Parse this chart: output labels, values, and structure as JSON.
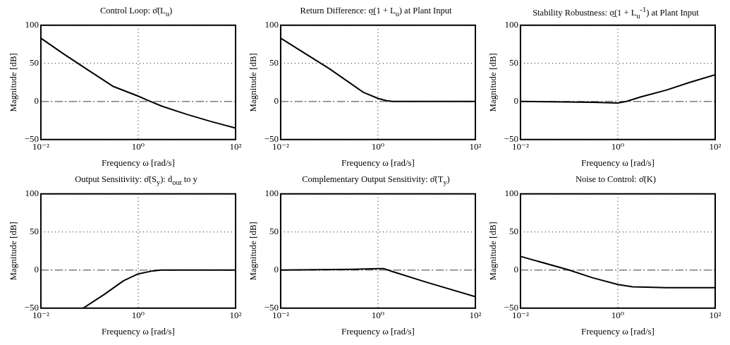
{
  "chart_data": [
    {
      "type": "line",
      "title": "Control Loop: σ̄(L$_{u}$)",
      "xlabel": "Frequency ω [rad/s]",
      "ylabel": "Magnitude [dB]",
      "log": "x",
      "grid": true,
      "xlim": [
        0.01,
        100
      ],
      "ylim": [
        -50,
        100
      ],
      "xticks": [
        {
          "value": 0.01,
          "label": "10⁻²"
        },
        {
          "value": 1,
          "label": "10⁰"
        },
        {
          "value": 100,
          "label": "10²"
        }
      ],
      "yticks": [
        -50,
        0,
        50,
        100
      ],
      "ref_lines": [
        {
          "axis": "y",
          "value": 0,
          "color": "#808080"
        }
      ],
      "x": [
        0.01,
        0.03,
        0.1,
        0.3,
        1,
        1.5,
        3,
        10,
        30,
        100
      ],
      "series": [
        {
          "color": "#000000",
          "values": [
            83,
            62,
            40,
            20,
            7,
            2,
            -6,
            -17,
            -26,
            -35
          ]
        }
      ]
    },
    {
      "type": "line",
      "title": "Return Difference: σ̲(1 + L$_{u}$) at Plant Input",
      "xlabel": "Frequency ω [rad/s]",
      "ylabel": "Magnitude [dB]",
      "log": "x",
      "grid": true,
      "xlim": [
        0.01,
        100
      ],
      "ylim": [
        -50,
        100
      ],
      "xticks": [
        {
          "value": 0.01,
          "label": "10⁻²"
        },
        {
          "value": 1,
          "label": "10⁰"
        },
        {
          "value": 100,
          "label": "10²"
        }
      ],
      "yticks": [
        -50,
        0,
        50,
        100
      ],
      "ref_lines": [
        {
          "axis": "y",
          "value": 0,
          "color": "#808080"
        }
      ],
      "x": [
        0.01,
        0.1,
        0.5,
        1,
        1.5,
        2,
        10,
        100
      ],
      "series": [
        {
          "color": "#000000",
          "values": [
            83,
            43,
            12,
            4,
            1,
            0,
            0,
            0
          ]
        }
      ]
    },
    {
      "type": "line",
      "title": "Stability Robustness: σ̲(1 + L$_{u}$$^{-1}$) at Plant Input",
      "xlabel": "Frequency ω [rad/s]",
      "ylabel": "Magnitude [dB]",
      "log": "x",
      "grid": true,
      "xlim": [
        0.01,
        100
      ],
      "ylim": [
        -50,
        100
      ],
      "xticks": [
        {
          "value": 0.01,
          "label": "10⁻²"
        },
        {
          "value": 1,
          "label": "10⁰"
        },
        {
          "value": 100,
          "label": "10²"
        }
      ],
      "yticks": [
        -50,
        0,
        50,
        100
      ],
      "ref_lines": [
        {
          "axis": "y",
          "value": 0,
          "color": "#808080"
        }
      ],
      "x": [
        0.01,
        0.3,
        1,
        1.5,
        3,
        10,
        30,
        100
      ],
      "series": [
        {
          "color": "#000000",
          "values": [
            0,
            -1,
            -2,
            0,
            6,
            15,
            25,
            35
          ]
        }
      ]
    },
    {
      "type": "line",
      "title": "Output Sensitivity: σ̄(S$_{y}$): d$_{out}$ to y",
      "xlabel": "Frequency ω [rad/s]",
      "ylabel": "Magnitude [dB]",
      "log": "x",
      "grid": true,
      "xlim": [
        0.01,
        100
      ],
      "ylim": [
        -50,
        100
      ],
      "xticks": [
        {
          "value": 0.01,
          "label": "10⁻²"
        },
        {
          "value": 1,
          "label": "10⁰"
        },
        {
          "value": 100,
          "label": "10²"
        }
      ],
      "yticks": [
        -50,
        0,
        50,
        100
      ],
      "ref_lines": [
        {
          "axis": "y",
          "value": 0,
          "color": "#808080"
        }
      ],
      "x": [
        0.074,
        0.2,
        0.5,
        1,
        2,
        3,
        10,
        100
      ],
      "series": [
        {
          "color": "#000000",
          "values": [
            -50,
            -32,
            -14,
            -5,
            -1,
            0,
            0,
            0
          ]
        }
      ]
    },
    {
      "type": "line",
      "title": "Complementary Output Sensitivity: σ̄(T$_{y}$)",
      "xlabel": "Frequency ω [rad/s]",
      "ylabel": "Magnitude [dB]",
      "log": "x",
      "grid": true,
      "xlim": [
        0.01,
        100
      ],
      "ylim": [
        -50,
        100
      ],
      "xticks": [
        {
          "value": 0.01,
          "label": "10⁻²"
        },
        {
          "value": 1,
          "label": "10⁰"
        },
        {
          "value": 100,
          "label": "10²"
        }
      ],
      "yticks": [
        -50,
        0,
        50,
        100
      ],
      "ref_lines": [
        {
          "axis": "y",
          "value": 0,
          "color": "#808080"
        }
      ],
      "x": [
        0.01,
        0.3,
        1,
        1.3,
        2,
        10,
        100
      ],
      "series": [
        {
          "color": "#000000",
          "values": [
            0,
            1,
            2,
            2,
            -2,
            -16,
            -35
          ]
        }
      ]
    },
    {
      "type": "line",
      "title": "Noise to Control: σ̄(K)",
      "xlabel": "Frequency ω [rad/s]",
      "ylabel": "Magnitude [dB]",
      "log": "x",
      "grid": true,
      "xlim": [
        0.01,
        100
      ],
      "ylim": [
        -50,
        100
      ],
      "xticks": [
        {
          "value": 0.01,
          "label": "10⁻²"
        },
        {
          "value": 1,
          "label": "10⁰"
        },
        {
          "value": 100,
          "label": "10²"
        }
      ],
      "yticks": [
        -50,
        0,
        50,
        100
      ],
      "ref_lines": [
        {
          "axis": "y",
          "value": 0,
          "color": "#808080"
        }
      ],
      "x": [
        0.01,
        0.1,
        0.3,
        1,
        2,
        10,
        100
      ],
      "series": [
        {
          "color": "#000000",
          "values": [
            18,
            0,
            -10,
            -19,
            -22,
            -23,
            -23
          ]
        }
      ]
    }
  ]
}
